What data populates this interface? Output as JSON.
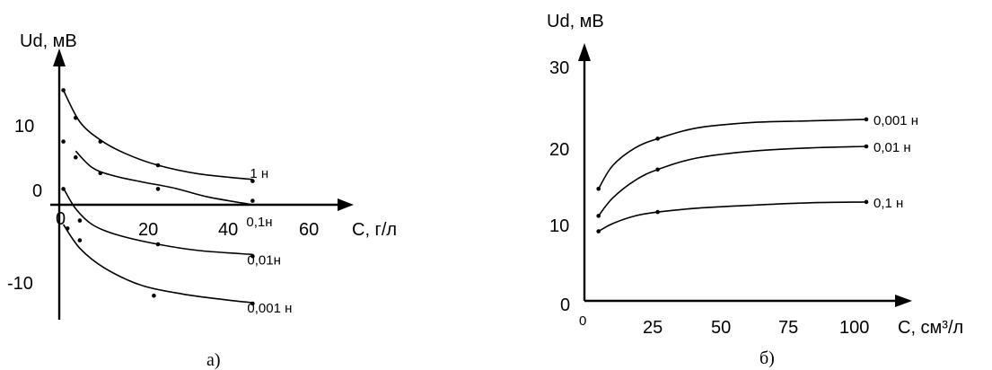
{
  "chart_data": [
    {
      "type": "scatter",
      "panel": "а)",
      "xlabel": "C, г/л",
      "ylabel": "Ud, мВ",
      "xlim": [
        0,
        70
      ],
      "ylim": [
        -15,
        17
      ],
      "x_ticks": [
        "0",
        "20",
        "40",
        "60"
      ],
      "y_ticks": [
        "10",
        "0",
        "-10"
      ],
      "grid": false,
      "legend": "curve-end labels",
      "series": [
        {
          "name": "1 н",
          "points": [
            [
              1,
              14.5
            ],
            [
              4,
              11
            ],
            [
              10,
              8
            ],
            [
              24,
              5
            ],
            [
              47,
              3
            ]
          ],
          "curve": [
            [
              1,
              14.5
            ],
            [
              5,
              10.5
            ],
            [
              10,
              8.2
            ],
            [
              16,
              6.5
            ],
            [
              24,
              5
            ],
            [
              34,
              3.9
            ],
            [
              47,
              3.2
            ]
          ]
        },
        {
          "name": "0,1н",
          "points": [
            [
              1,
              8
            ],
            [
              4,
              6
            ],
            [
              10,
              4
            ],
            [
              24,
              2
            ],
            [
              47,
              0.5
            ]
          ],
          "curve": [
            [
              4,
              6.8
            ],
            [
              8,
              4.7
            ],
            [
              13,
              3.7
            ],
            [
              20,
              2.9
            ],
            [
              28,
              2.1
            ],
            [
              36,
              1
            ],
            [
              47,
              0
            ]
          ]
        },
        {
          "name": "0,01н",
          "points": [
            [
              1,
              2
            ],
            [
              5,
              -2
            ],
            [
              24,
              -5
            ],
            [
              47,
              -6.5
            ]
          ],
          "curve": [
            [
              1,
              2.1
            ],
            [
              4,
              -0.5
            ],
            [
              8,
              -2.5
            ],
            [
              14,
              -3.8
            ],
            [
              24,
              -5
            ],
            [
              34,
              -5.8
            ],
            [
              47,
              -6.3
            ]
          ]
        },
        {
          "name": "0,001 н",
          "points": [
            [
              2,
              -3
            ],
            [
              5,
              -4.5
            ],
            [
              23,
              -11.5
            ],
            [
              47,
              -12.5
            ]
          ],
          "curve": [
            [
              1,
              -2.5
            ],
            [
              5,
              -5.5
            ],
            [
              11,
              -8
            ],
            [
              20,
              -10.2
            ],
            [
              30,
              -11.3
            ],
            [
              40,
              -12
            ],
            [
              47,
              -12.4
            ]
          ]
        }
      ]
    },
    {
      "type": "scatter",
      "panel": "б)",
      "xlabel": "C, см³/л",
      "ylabel": "Ud, мВ",
      "xlim": [
        0,
        110
      ],
      "ylim": [
        0,
        33
      ],
      "x_ticks": [
        "0",
        "25",
        "50",
        "75",
        "100"
      ],
      "y_ticks": [
        "0",
        "10",
        "20",
        "30"
      ],
      "grid": false,
      "legend": "curve-end labels",
      "series": [
        {
          "name": "0,001 н",
          "points": [
            [
              5,
              14.5
            ],
            [
              26,
              21
            ],
            [
              100,
              23.5
            ]
          ],
          "curve": [
            [
              5,
              14.5
            ],
            [
              10,
              17.5
            ],
            [
              18,
              19.8
            ],
            [
              26,
              21
            ],
            [
              40,
              22.4
            ],
            [
              60,
              23.1
            ],
            [
              80,
              23.3
            ],
            [
              100,
              23.5
            ]
          ]
        },
        {
          "name": "0,01 н",
          "points": [
            [
              5,
              11
            ],
            [
              26,
              17
            ],
            [
              100,
              20
            ]
          ],
          "curve": [
            [
              5,
              11
            ],
            [
              10,
              13.3
            ],
            [
              18,
              15.6
            ],
            [
              26,
              17
            ],
            [
              40,
              18.5
            ],
            [
              60,
              19.4
            ],
            [
              80,
              19.8
            ],
            [
              100,
              20
            ]
          ]
        },
        {
          "name": "0,1 н",
          "points": [
            [
              5,
              9
            ],
            [
              26,
              11.5
            ],
            [
              100,
              12.8
            ]
          ],
          "curve": [
            [
              5,
              9
            ],
            [
              10,
              10
            ],
            [
              18,
              11
            ],
            [
              26,
              11.5
            ],
            [
              40,
              12
            ],
            [
              60,
              12.4
            ],
            [
              80,
              12.7
            ],
            [
              100,
              12.8
            ]
          ]
        }
      ]
    }
  ]
}
